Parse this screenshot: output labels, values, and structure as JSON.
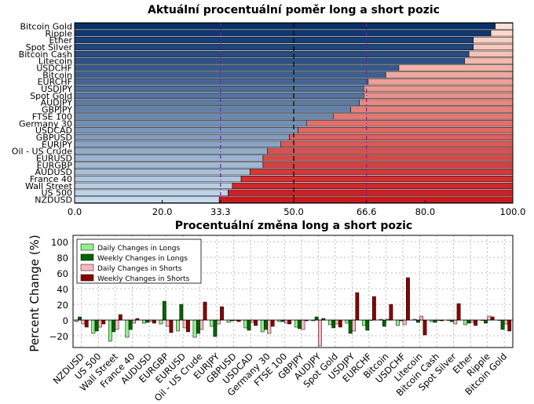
{
  "chart_data": [
    {
      "type": "bar",
      "orientation": "horizontal-stacked",
      "title": "Aktuální procentuální poměr long a short pozic",
      "xlim": [
        0,
        100
      ],
      "xticks": [
        "0.0",
        "20.0",
        "33.3",
        "50.0",
        "66.6",
        "80.0",
        "100.0"
      ],
      "reference_lines": [
        33.3,
        50.0,
        66.6
      ],
      "categories": [
        "Bitcoin Gold",
        "Ripple",
        "Ether",
        "Spot Silver",
        "Bitcoin Cash",
        "Litecoin",
        "USDCHF",
        "Bitcoin",
        "EURCHF",
        "USDJPY",
        "Spot Gold",
        "AUDJPY",
        "GBPJPY",
        "FTSE 100",
        "Germany 30",
        "USDCAD",
        "GBPUSD",
        "EURJPY",
        "Oil - US Crude",
        "EURUSD",
        "EURGBP",
        "AUDUSD",
        "France 40",
        "Wall Street",
        "US 500",
        "NZDUSD"
      ],
      "series": [
        {
          "name": "Long",
          "values": [
            96,
            95,
            91,
            91,
            90,
            89,
            74,
            71,
            67,
            66,
            66,
            65,
            63,
            59,
            53,
            51,
            49,
            47,
            44,
            43,
            43,
            40,
            38,
            36,
            35,
            33
          ]
        }
      ],
      "colors": {
        "long_dark": "#08306b",
        "long_light": "#c6dbef",
        "short_light": "#fee0d2",
        "short_dark": "#cb181d",
        "reference_line": "#7a1fa2"
      }
    },
    {
      "type": "bar",
      "title": "Procentuální změna long a short pozic",
      "ylabel": "Percent Change (%)",
      "ylim": [
        -35,
        108
      ],
      "yticks": [
        "100",
        "80",
        "60",
        "40",
        "20",
        "0",
        "−20"
      ],
      "grid": true,
      "legend": "top-left",
      "categories": [
        "NZDUSD",
        "US 500",
        "Wall Street",
        "France 40",
        "AUDUSD",
        "EURGBP",
        "EURUSD",
        "Oil - US Crude",
        "EURJPY",
        "GBPUSD",
        "USDCAD",
        "Germany 30",
        "FTSE 100",
        "GBPJPY",
        "AUDJPY",
        "Spot Gold",
        "USDJPY",
        "EURCHF",
        "Bitcoin",
        "USDCHF",
        "Litecoin",
        "Bitcoin Cash",
        "Spot Silver",
        "Ether",
        "Ripple",
        "Bitcoin Gold"
      ],
      "series": [
        {
          "name": "Daily Changes in Longs",
          "color": "#90ee90",
          "values": [
            -2,
            -17,
            -27,
            -22,
            -4,
            -5,
            -14,
            -22,
            -8,
            -3,
            -10,
            -15,
            -2,
            -9,
            -1,
            -6,
            -4,
            -7,
            1,
            -7,
            1,
            -2,
            0,
            -6,
            0,
            0
          ]
        },
        {
          "name": "Weekly Changes in Longs",
          "color": "#006400",
          "values": [
            4,
            -14,
            -15,
            -12,
            -3,
            24,
            20,
            -17,
            -21,
            -1,
            -13,
            -12,
            -2,
            -11,
            4,
            -10,
            -17,
            -13,
            -8,
            -1,
            -3,
            -3,
            -2,
            -4,
            -4,
            -12
          ]
        },
        {
          "name": "Daily Changes in Shorts",
          "color": "#ffb6c1",
          "values": [
            -5,
            -9,
            -12,
            -4,
            -2,
            -8,
            -10,
            -12,
            -5,
            0,
            -3,
            -17,
            -4,
            -12,
            -33,
            -5,
            -14,
            0,
            1,
            -6,
            5,
            0,
            -5,
            -3,
            5,
            -5
          ]
        },
        {
          "name": "Weekly Changes in Shorts",
          "color": "#8b0000",
          "values": [
            -9,
            -5,
            7,
            2,
            -4,
            -16,
            -15,
            23,
            17,
            -2,
            -7,
            -8,
            -5,
            -1,
            2,
            -9,
            35,
            30,
            20,
            54,
            -19,
            -1,
            21,
            -7,
            4,
            -14
          ]
        }
      ]
    }
  ]
}
